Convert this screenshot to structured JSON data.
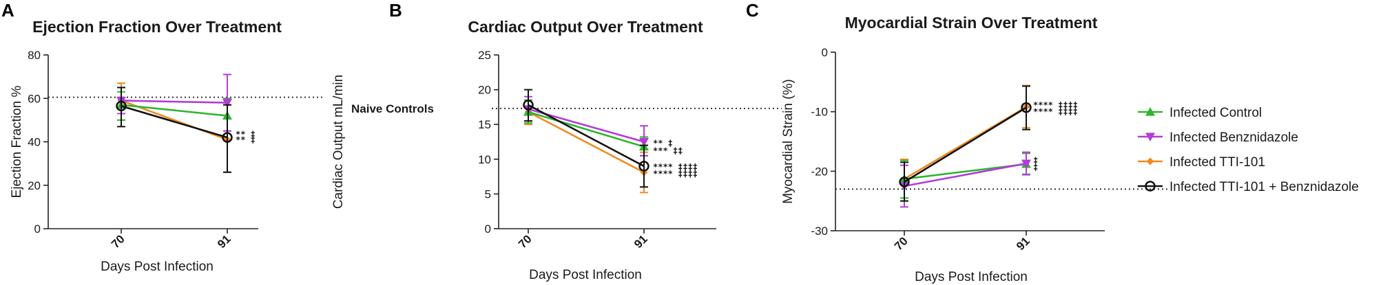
{
  "figure": {
    "panels": [
      "A",
      "B",
      "C"
    ]
  },
  "legend": {
    "items": [
      {
        "label": "Infected Control",
        "color": "#2fb52f",
        "marker": "triangle-up"
      },
      {
        "label": "Infected Benznidazole",
        "color": "#b23cd8",
        "marker": "triangle-down"
      },
      {
        "label": "Infected TTI-101",
        "color": "#f28a1c",
        "marker": "diamond"
      },
      {
        "label": "Infected TTI-101 + Benznidazole",
        "color": "#111111",
        "marker": "circle"
      }
    ]
  },
  "chart_data": [
    {
      "panel": "A",
      "type": "line",
      "title": "Ejection Fraction Over Treatment",
      "xlabel": "Days Post Infection",
      "ylabel": "Ejection  Fraction %",
      "categories": [
        "70",
        "91"
      ],
      "ylim": [
        0,
        80
      ],
      "yticks": [
        0,
        20,
        40,
        60,
        80
      ],
      "reference_line": {
        "value": 60.5,
        "label": ""
      },
      "series": [
        {
          "name": "Infected Control",
          "values": [
            57,
            52
          ],
          "err_low": [
            50,
            45
          ],
          "err_high": [
            63,
            60
          ]
        },
        {
          "name": "Infected Benznidazole",
          "values": [
            59,
            58
          ],
          "err_low": [
            53,
            45
          ],
          "err_high": [
            65,
            71
          ]
        },
        {
          "name": "Infected TTI-101",
          "values": [
            59,
            41
          ],
          "err_low": [
            50,
            26
          ],
          "err_high": [
            67,
            57
          ]
        },
        {
          "name": "Infected TTI-101 + Benznidazole",
          "values": [
            56.5,
            42
          ],
          "err_low": [
            47,
            26
          ],
          "err_high": [
            65,
            57
          ]
        }
      ],
      "annotations": [
        {
          "text": "** ‡",
          "x": "91",
          "y": 43.5
        },
        {
          "text": "** ‡",
          "x": "91",
          "y": 41
        }
      ]
    },
    {
      "panel": "B",
      "type": "line",
      "title": "Cardiac Output Over Treatment",
      "xlabel": "Days Post Infection",
      "ylabel": "Cardiac Output mL/min",
      "categories": [
        "70",
        "91"
      ],
      "ylim": [
        0,
        25
      ],
      "yticks": [
        0,
        5,
        10,
        15,
        20,
        25
      ],
      "reference_line": {
        "value": 17.3,
        "label": "Naive Controls"
      },
      "series": [
        {
          "name": "Infected Control",
          "values": [
            16.8,
            11.8
          ],
          "err_low": [
            15.2,
            10.5
          ],
          "err_high": [
            18.5,
            13.2
          ]
        },
        {
          "name": "Infected Benznidazole",
          "values": [
            17.2,
            12.5
          ],
          "err_low": [
            15.5,
            10.5
          ],
          "err_high": [
            19,
            14.8
          ]
        },
        {
          "name": "Infected TTI-101",
          "values": [
            16.8,
            8.1
          ],
          "err_low": [
            15.0,
            5.2
          ],
          "err_high": [
            18.5,
            11
          ]
        },
        {
          "name": "Infected TTI-101 + Benznidazole",
          "values": [
            17.8,
            9
          ],
          "err_low": [
            15.5,
            6
          ],
          "err_high": [
            20,
            12
          ]
        }
      ],
      "annotations": [
        {
          "text": "**   ‡",
          "x": "91",
          "y": 12.3
        },
        {
          "text": "***  ‡‡",
          "x": "91",
          "y": 11.2
        },
        {
          "text": "**** ‡‡‡‡",
          "x": "91",
          "y": 8.9
        },
        {
          "text": "**** ‡‡‡‡",
          "x": "91",
          "y": 7.9
        }
      ]
    },
    {
      "panel": "C",
      "type": "line",
      "title": "Myocardial Strain Over Treatment",
      "xlabel": "Days Post Infection",
      "ylabel": "Myocardial Strain  (%)",
      "categories": [
        "70",
        "91"
      ],
      "ylim": [
        -30,
        0
      ],
      "yticks": [
        -30,
        -20,
        -10,
        0
      ],
      "reference_line": {
        "value": -23,
        "label": ""
      },
      "series": [
        {
          "name": "Infected Control",
          "values": [
            -21.3,
            -18.8
          ],
          "err_low": [
            -24.5,
            -20.5
          ],
          "err_high": [
            -18.2,
            -17
          ]
        },
        {
          "name": "Infected Benznidazole",
          "values": [
            -22.5,
            -18.7
          ],
          "err_low": [
            -26,
            -20.6
          ],
          "err_high": [
            -19,
            -16.8
          ]
        },
        {
          "name": "Infected TTI-101",
          "values": [
            -21.3,
            -9.2
          ],
          "err_low": [
            -25,
            -12.7
          ],
          "err_high": [
            -18,
            -5.6
          ]
        },
        {
          "name": "Infected TTI-101 + Benznidazole",
          "values": [
            -21.8,
            -9.3
          ],
          "err_low": [
            -25,
            -13
          ],
          "err_high": [
            -18.5,
            -5.7
          ]
        }
      ],
      "annotations": [
        {
          "text": "**** ‡‡‡‡",
          "x": "91",
          "y": -8.9
        },
        {
          "text": "**** ‡‡‡‡",
          "x": "91",
          "y": -10.0
        },
        {
          "text": "‡",
          "x": "91",
          "y": -18.2
        },
        {
          "text": "‡",
          "x": "91",
          "y": -19.3
        }
      ]
    }
  ]
}
